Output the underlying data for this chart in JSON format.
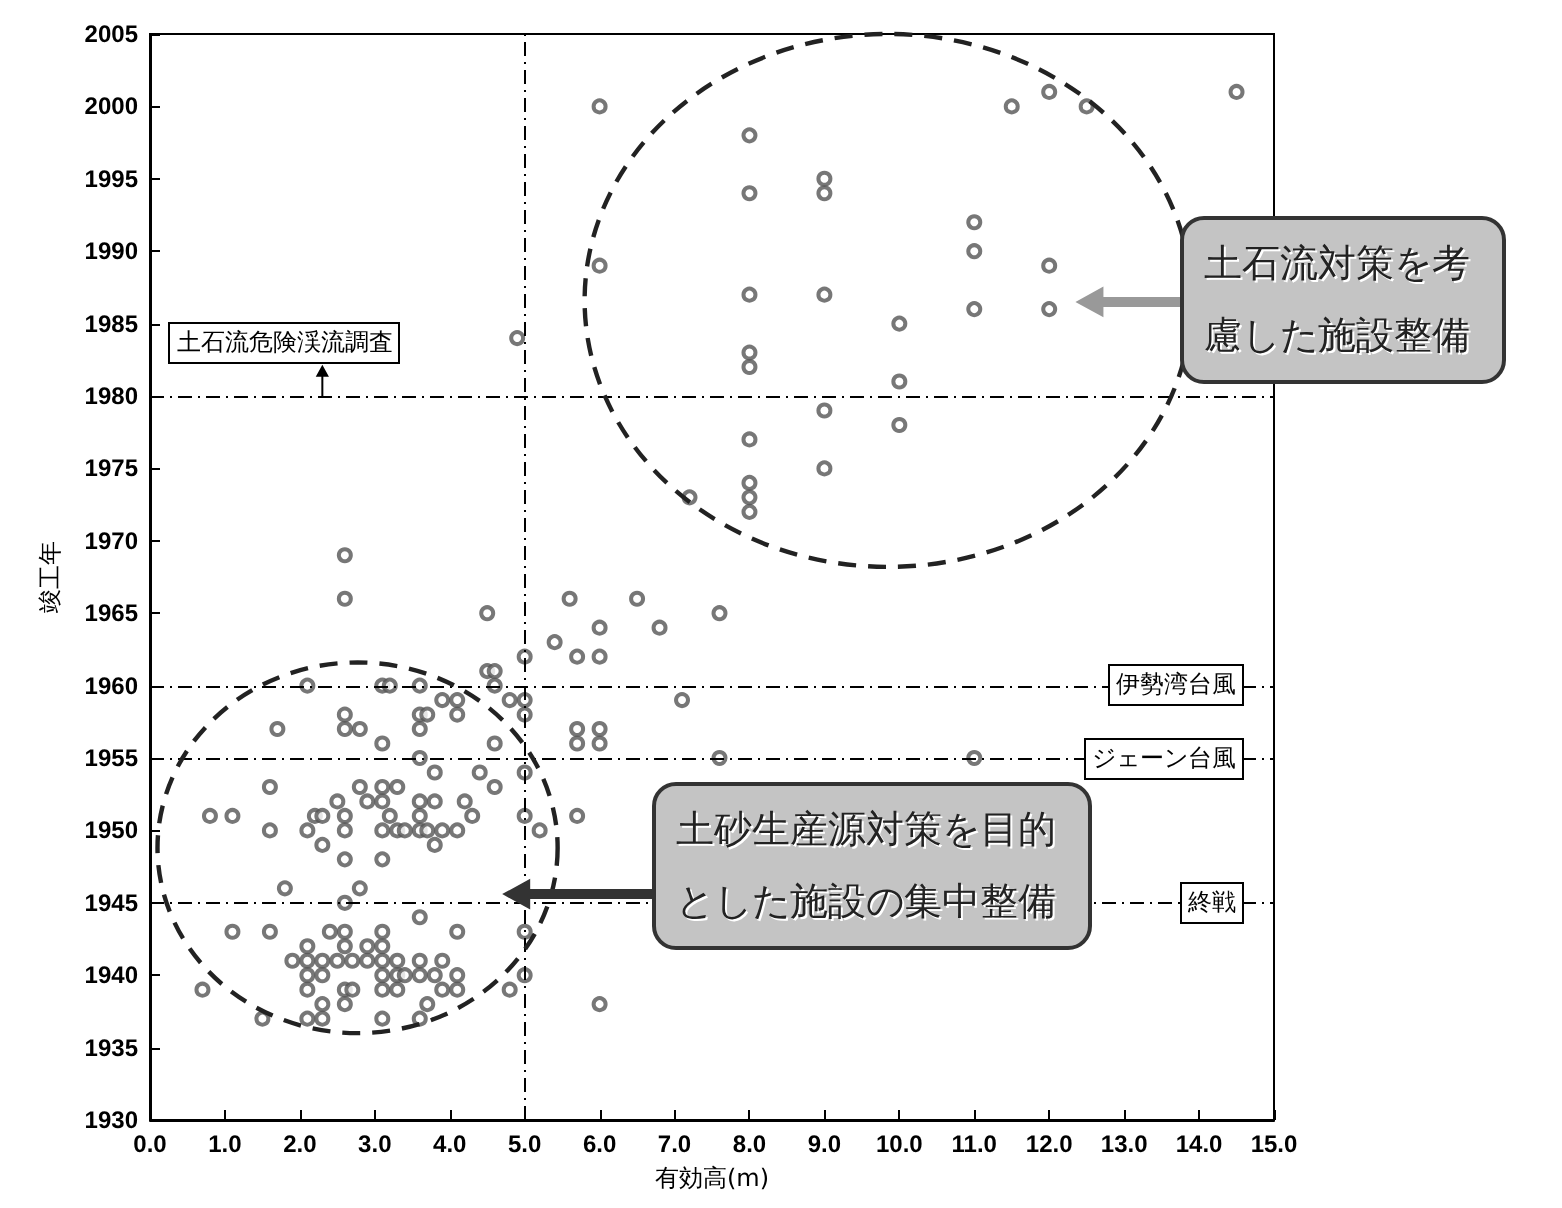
{
  "chart_data": {
    "type": "scatter",
    "xlabel": "有効高(m)",
    "ylabel": "竣工年",
    "marker": "circle",
    "xlim": [
      0,
      15
    ],
    "ylim": [
      1930,
      2005
    ],
    "xticks": [
      {
        "value": 0,
        "label": "0.0"
      },
      {
        "value": 1,
        "label": "1.0"
      },
      {
        "value": 2,
        "label": "2.0"
      },
      {
        "value": 3,
        "label": "3.0"
      },
      {
        "value": 4,
        "label": "4.0"
      },
      {
        "value": 5,
        "label": "5.0"
      },
      {
        "value": 6,
        "label": "6.0"
      },
      {
        "value": 7,
        "label": "7.0"
      },
      {
        "value": 8,
        "label": "8.0"
      },
      {
        "value": 9,
        "label": "9.0"
      },
      {
        "value": 10,
        "label": "10.0"
      },
      {
        "value": 11,
        "label": "11.0"
      },
      {
        "value": 12,
        "label": "12.0"
      },
      {
        "value": 13,
        "label": "13.0"
      },
      {
        "value": 14,
        "label": "14.0"
      },
      {
        "value": 15,
        "label": "15.0"
      }
    ],
    "yticks": [
      1930,
      1935,
      1940,
      1945,
      1950,
      1955,
      1960,
      1965,
      1970,
      1975,
      1980,
      1985,
      1990,
      1995,
      2000,
      2005
    ],
    "series": [
      {
        "color": "#555555",
        "x": [
          2.6,
          2.6,
          4.5,
          5.4,
          4.5,
          4.6,
          5.0,
          2.1,
          3.1,
          3.2,
          3.6,
          4.6,
          3.9,
          4.1,
          1.7,
          2.6,
          2.6,
          2.8,
          3.1,
          3.6,
          3.7,
          3.6,
          4.1,
          4.8,
          4.6,
          5.0,
          5.0,
          3.6,
          5.0,
          3.8,
          4.4,
          4.6,
          1.6,
          2.8,
          3.1,
          3.3,
          2.5,
          2.9,
          3.1,
          3.6,
          3.8,
          4.2,
          0.8,
          1.1,
          2.2,
          2.3,
          2.6,
          3.2,
          3.6,
          4.3,
          5.0,
          5.2,
          1.6,
          2.1,
          2.6,
          3.1,
          3.3,
          3.4,
          3.6,
          3.7,
          3.9,
          4.1,
          2.3,
          3.8,
          2.6,
          3.1,
          1.8,
          2.8,
          2.6,
          5.0,
          1.1,
          1.6,
          2.4,
          2.6,
          3.1,
          3.6,
          4.1,
          2.1,
          2.6,
          2.9,
          3.1,
          1.9,
          2.1,
          2.3,
          2.5,
          2.7,
          2.9,
          3.1,
          3.3,
          3.6,
          3.9,
          2.1,
          2.3,
          3.1,
          3.3,
          3.4,
          3.6,
          3.8,
          4.1,
          5.0,
          0.7,
          2.1,
          2.6,
          2.7,
          3.1,
          3.3,
          3.9,
          4.1,
          4.8,
          2.3,
          2.6,
          3.7,
          1.5,
          2.1,
          2.3,
          3.1,
          3.6,
          5.7,
          6.0,
          6.0,
          6.8,
          7.6,
          7.1,
          5.7,
          5.7,
          6.0,
          6.0,
          7.6,
          5.7,
          6.0,
          5.6,
          6.5,
          11.0,
          4.9,
          6.0,
          6.0,
          8.0,
          8.0,
          8.0,
          8.0,
          8.0,
          8.0,
          8.0,
          8.0,
          8.0,
          9.0,
          9.0,
          9.0,
          9.0,
          9.0,
          10.0,
          10.0,
          10.0,
          11.0,
          11.0,
          11.0,
          12.0,
          12.0,
          11.5,
          12.0,
          12.5,
          7.2,
          14.5
        ],
        "values": [
          1969,
          1966,
          1965,
          1963,
          1961,
          1961,
          1962,
          1960,
          1960,
          1960,
          1960,
          1960,
          1959,
          1959,
          1957,
          1958,
          1957,
          1957,
          1956,
          1958,
          1958,
          1957,
          1958,
          1959,
          1956,
          1959,
          1958,
          1955,
          1954,
          1954,
          1954,
          1953,
          1953,
          1953,
          1953,
          1953,
          1952,
          1952,
          1952,
          1952,
          1952,
          1952,
          1951,
          1951,
          1951,
          1951,
          1951,
          1951,
          1951,
          1951,
          1951,
          1950,
          1950,
          1950,
          1950,
          1950,
          1950,
          1950,
          1950,
          1950,
          1950,
          1950,
          1949,
          1949,
          1948,
          1948,
          1946,
          1946,
          1945,
          1943,
          1943,
          1943,
          1943,
          1943,
          1943,
          1944,
          1943,
          1942,
          1942,
          1942,
          1942,
          1941,
          1941,
          1941,
          1941,
          1941,
          1941,
          1941,
          1941,
          1941,
          1941,
          1940,
          1940,
          1940,
          1940,
          1940,
          1940,
          1940,
          1940,
          1940,
          1939,
          1939,
          1939,
          1939,
          1939,
          1939,
          1939,
          1939,
          1939,
          1938,
          1938,
          1938,
          1937,
          1937,
          1937,
          1937,
          1937,
          1962,
          1962,
          1964,
          1964,
          1965,
          1959,
          1957,
          1956,
          1957,
          1956,
          1955,
          1951,
          1938,
          1966,
          1966,
          1955,
          1984,
          2000,
          1989,
          1998,
          1994,
          1987,
          1983,
          1982,
          1977,
          1974,
          1973,
          1972,
          1995,
          1994,
          1987,
          1979,
          1975,
          1985,
          1981,
          1978,
          1992,
          1990,
          1986,
          1989,
          1986,
          2000,
          2001,
          2000,
          1973,
          2001
        ]
      }
    ],
    "ref_lines": [
      {
        "axis": "y",
        "value": 1980,
        "label": "土石流危険渓流調査",
        "line_style": "dashed"
      },
      {
        "axis": "y",
        "value": 1960,
        "label": "伊勢湾台風",
        "line_style": "dashed"
      },
      {
        "axis": "y",
        "value": 1955,
        "label": "ジェーン台風",
        "line_style": "dashed"
      },
      {
        "axis": "y",
        "value": 1945,
        "label": "終戦",
        "line_style": "dashed"
      },
      {
        "axis": "x",
        "value": 5,
        "line_style": "dashed"
      }
    ],
    "annotations": [
      "土石流対策を考慮した施設整備",
      "土砂生産源対策を目的とした施設の集中整備"
    ],
    "grid": false
  }
}
